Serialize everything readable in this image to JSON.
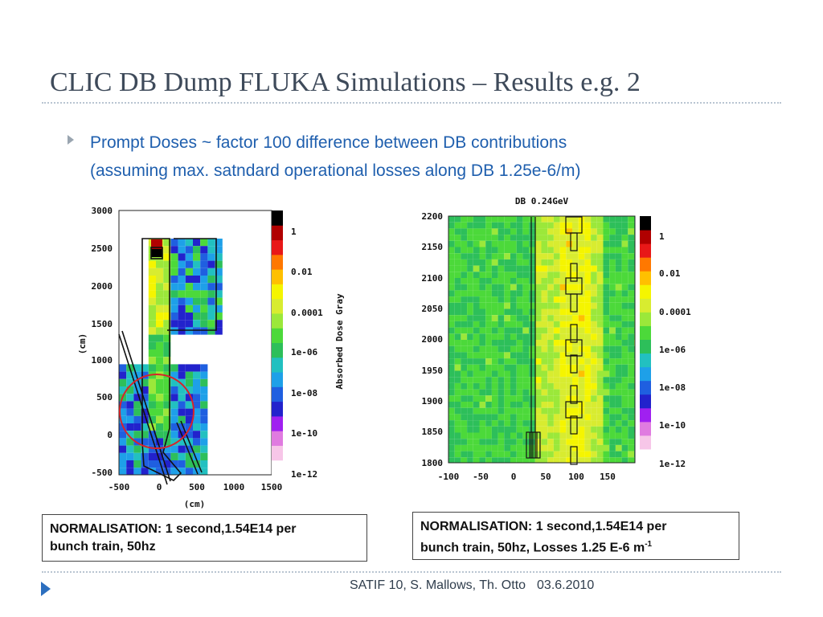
{
  "slide": {
    "title": "CLIC DB Dump FLUKA Simulations – Results e.g. 2",
    "bullet_line1": "Prompt Doses ~ factor 100 difference between DB contributions",
    "bullet_line2": "(assuming max. satndard operational losses along DB 1.25e-6/m)",
    "norm_left_line1": "NORMALISATION: 1 second,1.54E14 per",
    "norm_left_line2": "bunch train, 50hz",
    "norm_right_line1": "NORMALISATION: 1 second,1.54E14 per",
    "norm_right_line2": "bunch train, 50hz, Losses 1.25 E-6 m",
    "norm_right_sup": "-1",
    "footer_authors": "SATIF 10, S. Mallows, Th. Otto",
    "footer_date": "03.6.2010"
  },
  "chart_data": [
    {
      "type": "heatmap",
      "title": "",
      "xlabel": "(cm)",
      "ylabel": "(cm)",
      "colorbar_label": "Absorbed Dose Gray",
      "xticks": [
        "-500",
        "0",
        "500",
        "1000",
        "1500"
      ],
      "yticks": [
        "3000",
        "2500",
        "2000",
        "1500",
        "1000",
        "500",
        "0",
        "-500"
      ],
      "colorbar_ticks": [
        "1",
        "0.01",
        "0.0001",
        "1e-06",
        "1e-08",
        "1e-10",
        "1e-12"
      ],
      "xlim": [
        -500,
        1500
      ],
      "ylim": [
        -500,
        3000
      ]
    },
    {
      "type": "heatmap",
      "title": "DB 0.24GeV",
      "xticks": [
        "-100",
        "-50",
        "0",
        "50",
        "100",
        "150"
      ],
      "yticks": [
        "2200",
        "2150",
        "2100",
        "2050",
        "2000",
        "1950",
        "1900",
        "1850",
        "1800"
      ],
      "colorbar_ticks": [
        "1",
        "0.01",
        "0.0001",
        "1e-06",
        "1e-08",
        "1e-10",
        "1e-12"
      ],
      "xlim": [
        -100,
        170
      ],
      "ylim": [
        1800,
        2200
      ]
    }
  ]
}
